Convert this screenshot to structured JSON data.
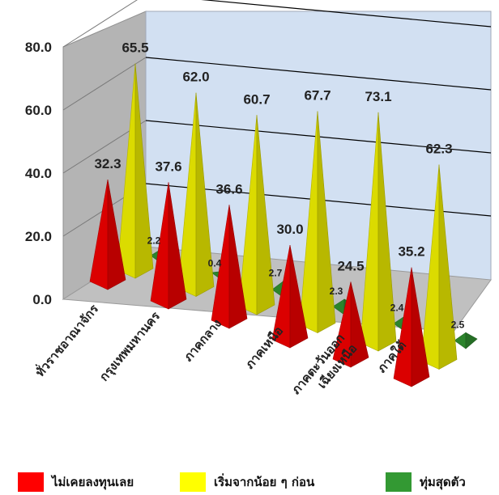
{
  "chart_data": {
    "type": "bar",
    "bar_shape": "3d pyramid",
    "categories": [
      [
        "ทั่วราชอาณาจักร"
      ],
      [
        "กรุงเทพมหานคร"
      ],
      [
        "ภาคกลาง"
      ],
      [
        "ภาคเหนือ"
      ],
      [
        "ภาคตะวันออก",
        "เฉียงเหนือ"
      ],
      [
        "ภาคใต้"
      ]
    ],
    "series": [
      {
        "name": "ไม่เคยลงทุนเลย",
        "color": "#ff0000",
        "values": [
          32.3,
          37.6,
          36.6,
          30.0,
          24.5,
          35.2
        ]
      },
      {
        "name": "เริ่มจากน้อย ๆ ก่อน",
        "color": "#ffff00",
        "values": [
          65.5,
          62.0,
          60.7,
          67.7,
          73.1,
          62.3
        ]
      },
      {
        "name": "ทุ่มสุดตัว",
        "color": "#339933",
        "values": [
          2.2,
          0.4,
          2.7,
          2.3,
          2.4,
          2.5
        ]
      }
    ],
    "y_ticks": [
      "0.0",
      "20.0",
      "40.0",
      "60.0",
      "80.0"
    ],
    "ylim": [
      0,
      80
    ],
    "legend_position": "bottom",
    "grid": true
  }
}
